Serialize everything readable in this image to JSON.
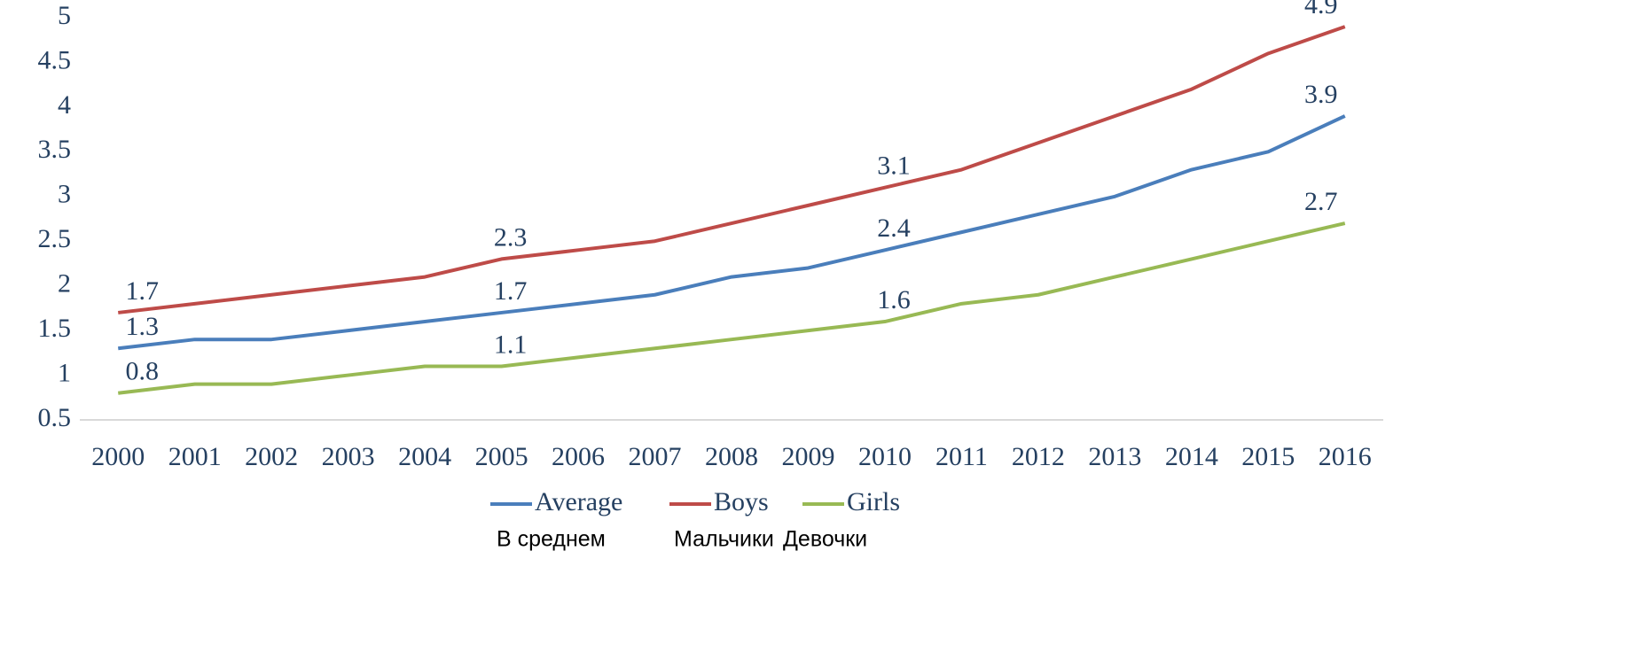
{
  "chart_data": {
    "type": "line",
    "categories": [
      "2000",
      "2001",
      "2002",
      "2003",
      "2004",
      "2005",
      "2006",
      "2007",
      "2008",
      "2009",
      "2010",
      "2011",
      "2012",
      "2013",
      "2014",
      "2015",
      "2016"
    ],
    "series": [
      {
        "name": "Average",
        "color": "#4a7ebb",
        "values": [
          1.3,
          1.4,
          1.4,
          1.5,
          1.6,
          1.7,
          1.8,
          1.9,
          2.1,
          2.2,
          2.4,
          2.6,
          2.8,
          3.0,
          3.3,
          3.5,
          3.9
        ]
      },
      {
        "name": "Boys",
        "color": "#be4b48",
        "values": [
          1.7,
          1.8,
          1.9,
          2.0,
          2.1,
          2.3,
          2.4,
          2.5,
          2.7,
          2.9,
          3.1,
          3.3,
          3.6,
          3.9,
          4.2,
          4.6,
          4.9
        ]
      },
      {
        "name": "Girls",
        "color": "#98b954",
        "values": [
          0.8,
          0.9,
          0.9,
          1.0,
          1.1,
          1.1,
          1.2,
          1.3,
          1.4,
          1.5,
          1.6,
          1.8,
          1.9,
          2.1,
          2.3,
          2.5,
          2.7
        ]
      }
    ],
    "labeled_points": [
      0,
      5,
      10,
      16
    ],
    "legend_translations": [
      "В среднем",
      "Мальчики",
      "Девочки"
    ],
    "ylim": [
      0.5,
      5
    ],
    "yticks": [
      0.5,
      1,
      1.5,
      2,
      2.5,
      3,
      3.5,
      4,
      4.5,
      5
    ],
    "grid": false,
    "legend": "bottom"
  }
}
